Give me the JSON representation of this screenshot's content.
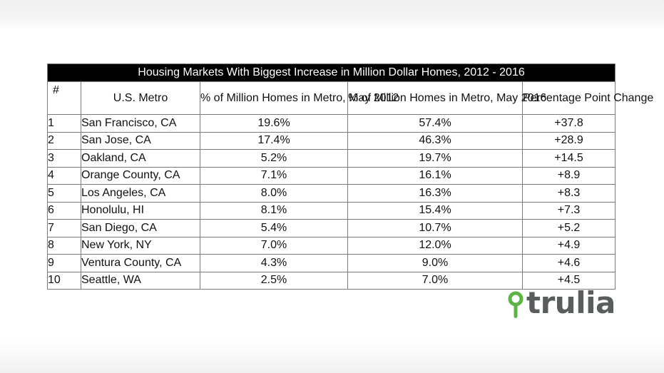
{
  "chart_data": {
    "type": "table",
    "title": "Housing Markets With Biggest Increase in Million Dollar Homes, 2012 - 2016",
    "columns": [
      "#",
      "U.S. Metro",
      "% of Million Homes in Metro, May 2012",
      "% of Million Homes in Metro, May 2016",
      "Percentage Point Change"
    ],
    "rows": [
      [
        "1",
        "San Francisco, CA",
        "19.6%",
        "57.4%",
        "+37.8"
      ],
      [
        "2",
        "San Jose, CA",
        "17.4%",
        "46.3%",
        "+28.9"
      ],
      [
        "3",
        "Oakland, CA",
        "5.2%",
        "19.7%",
        "+14.5"
      ],
      [
        "4",
        "Orange County, CA",
        "7.1%",
        "16.1%",
        "+8.9"
      ],
      [
        "5",
        "Los Angeles, CA",
        "8.0%",
        "16.3%",
        "+8.3"
      ],
      [
        "6",
        "Honolulu, HI",
        "8.1%",
        "15.4%",
        "+7.3"
      ],
      [
        "7",
        "San Diego, CA",
        "5.4%",
        "10.7%",
        "+5.2"
      ],
      [
        "8",
        "New York, NY",
        "7.0%",
        "12.0%",
        "+4.9"
      ],
      [
        "9",
        "Ventura County, CA",
        "4.3%",
        "9.0%",
        "+4.6"
      ],
      [
        "10",
        "Seattle, WA",
        "2.5%",
        "7.0%",
        "+4.5"
      ]
    ]
  },
  "logo": {
    "text": "trulia",
    "icon": "map-pin-icon",
    "pin_color": "#5bb443",
    "text_color": "#5a5e5a"
  }
}
